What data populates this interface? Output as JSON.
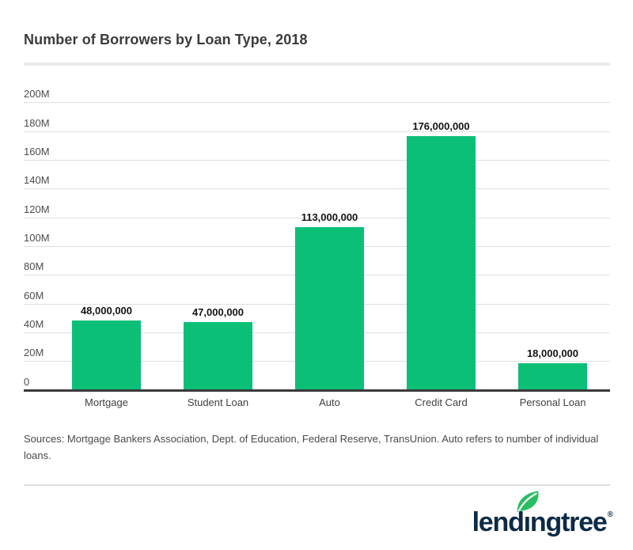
{
  "page": {
    "title": "Number of Borrowers by Loan Type, 2018",
    "footer": "Sources: Mortgage Bankers Association, Dept. of Education, Federal Reserve, TransUnion. Auto refers to number of individual loans.",
    "logo": {
      "text": "lendingtree",
      "registered_mark": "®"
    }
  },
  "colors": {
    "bar": "#0cbf77",
    "leaf": "#2abd62",
    "logo_navy": "#0d2b45",
    "axis": "#3a3a3a",
    "gridline": "#dfdfdf",
    "title_text": "#3b3b3b"
  },
  "chart_data": {
    "type": "bar",
    "title": "Number of Borrowers by Loan Type, 2018",
    "categories": [
      "Mortgage",
      "Student Loan",
      "Auto",
      "Credit Card",
      "Personal Loan"
    ],
    "values": [
      48000000,
      47000000,
      113000000,
      176000000,
      18000000
    ],
    "value_labels": [
      "48,000,000",
      "47,000,000",
      "113,000,000",
      "176,000,000",
      "18,000,000"
    ],
    "xlabel": "",
    "ylabel": "",
    "ylim": [
      0,
      200000000
    ],
    "y_tick_step": 20000000,
    "y_tick_labels": [
      "0",
      "20M",
      "40M",
      "60M",
      "80M",
      "100M",
      "120M",
      "140M",
      "160M",
      "180M",
      "200M"
    ],
    "grid": true,
    "legend": false,
    "bar_color": "#0cbf77"
  }
}
